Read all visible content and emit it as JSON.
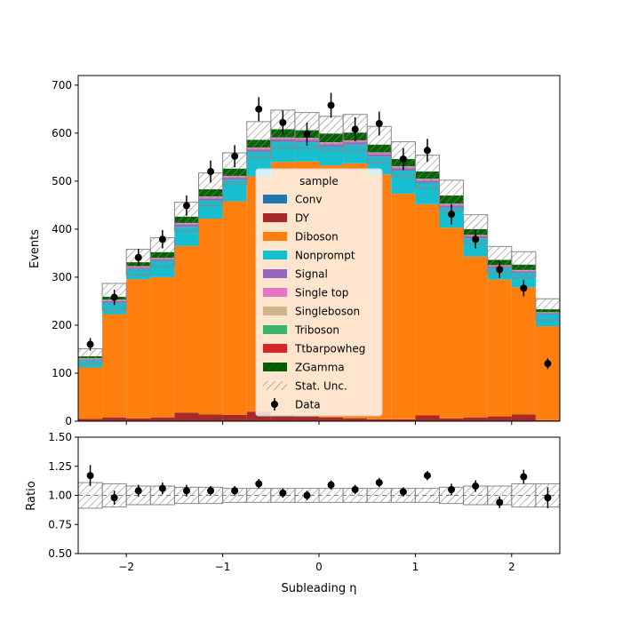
{
  "chart_data": [
    {
      "type": "stacked-histogram",
      "xlabel": "",
      "ylabel": "Events",
      "xlim": [
        -2.5,
        2.5
      ],
      "ylim": [
        0,
        720
      ],
      "x_ticks": [
        "−2",
        "−1",
        "0",
        "1",
        "2"
      ],
      "x_tick_values": [
        -2,
        -1,
        0,
        1,
        2
      ],
      "y_ticks": [
        "0",
        "100",
        "200",
        "300",
        "400",
        "500",
        "600",
        "700"
      ],
      "y_tick_values": [
        0,
        100,
        200,
        300,
        400,
        500,
        600,
        700
      ],
      "bin_edges": [
        -2.5,
        -2.25,
        -2.0,
        -1.75,
        -1.5,
        -1.25,
        -1.0,
        -0.75,
        -0.5,
        -0.25,
        0.0,
        0.25,
        0.5,
        0.75,
        1.0,
        1.25,
        1.5,
        1.75,
        2.0,
        2.25,
        2.5
      ],
      "legend_title": "sample",
      "legend_position": "center",
      "series": [
        {
          "name": "Conv",
          "color": "#1f77b4",
          "values": [
            0,
            0,
            0,
            0,
            0,
            0,
            0,
            0,
            0,
            0,
            0,
            0,
            0,
            0,
            0,
            0,
            0,
            0,
            0,
            0
          ]
        },
        {
          "name": "DY",
          "color": "#a52a2a",
          "values": [
            5,
            8,
            6,
            8,
            18,
            14,
            13,
            20,
            12,
            10,
            8,
            6,
            4,
            4,
            12,
            6,
            8,
            10,
            14,
            2
          ]
        },
        {
          "name": "Diboson",
          "color": "#ff7f0e",
          "values": [
            107,
            215,
            290,
            292,
            347,
            408,
            445,
            490,
            528,
            531,
            525,
            531,
            510,
            470,
            440,
            397,
            335,
            285,
            265,
            196
          ]
        },
        {
          "name": "Nonprompt",
          "color": "#17becf",
          "values": [
            15,
            24,
            21,
            34,
            40,
            38,
            45,
            51,
            42,
            40,
            39,
            39,
            37,
            48,
            45,
            42,
            38,
            24,
            30,
            25
          ]
        },
        {
          "name": "Signal",
          "color": "#9467bd",
          "values": [
            2,
            3,
            3,
            3,
            4,
            4,
            4,
            5,
            5,
            5,
            5,
            5,
            5,
            5,
            4,
            4,
            4,
            3,
            3,
            2
          ]
        },
        {
          "name": "Single top",
          "color": "#e377c2",
          "values": [
            1,
            2,
            2,
            2,
            3,
            3,
            3,
            3,
            3,
            3,
            3,
            3,
            3,
            3,
            3,
            3,
            2,
            2,
            2,
            1
          ]
        },
        {
          "name": "Singleboson",
          "color": "#d2b48c",
          "values": [
            1,
            1,
            1,
            1,
            1,
            1,
            1,
            1,
            1,
            1,
            1,
            1,
            1,
            1,
            1,
            1,
            1,
            1,
            1,
            1
          ]
        },
        {
          "name": "Triboson",
          "color": "#3cb371",
          "values": [
            0,
            0,
            0,
            0,
            0,
            0,
            0,
            0,
            0,
            0,
            0,
            0,
            0,
            0,
            0,
            0,
            0,
            0,
            0,
            0
          ]
        },
        {
          "name": "Ttbarpowheg",
          "color": "#d62728",
          "values": [
            0,
            0,
            0,
            0,
            0,
            0,
            0,
            0,
            0,
            0,
            0,
            0,
            0,
            0,
            0,
            0,
            0,
            0,
            0,
            0
          ]
        },
        {
          "name": "ZGamma",
          "color": "#006400",
          "values": [
            4,
            6,
            8,
            12,
            13,
            15,
            15,
            16,
            17,
            16,
            18,
            16,
            16,
            15,
            15,
            17,
            12,
            11,
            11,
            6
          ]
        }
      ],
      "stat_unc": {
        "name": "Stat. Unc.",
        "values": [
          16,
          28,
          27,
          30,
          30,
          34,
          33,
          38,
          40,
          37,
          36,
          38,
          38,
          36,
          34,
          32,
          30,
          28,
          27,
          22
        ]
      },
      "data": {
        "name": "Data",
        "color": "#000000",
        "values": [
          160,
          258,
          341,
          379,
          449,
          520,
          552,
          650,
          622,
          598,
          658,
          608,
          620,
          546,
          564,
          431,
          379,
          316,
          277,
          120
        ],
        "errors": [
          13,
          16,
          18,
          19,
          21,
          23,
          23,
          25,
          25,
          24,
          26,
          25,
          25,
          23,
          24,
          21,
          19,
          18,
          17,
          11
        ]
      }
    },
    {
      "type": "ratio",
      "ylabel": "Ratio",
      "xlabel": "Subleading η",
      "xlim": [
        -2.5,
        2.5
      ],
      "ylim": [
        0.5,
        1.5
      ],
      "x_ticks": [
        "−2",
        "−1",
        "0",
        "1",
        "2"
      ],
      "x_tick_values": [
        -2,
        -1,
        0,
        1,
        2
      ],
      "y_ticks": [
        "0.50",
        "0.75",
        "1.00",
        "1.25",
        "1.50"
      ],
      "y_tick_values": [
        0.5,
        0.75,
        1.0,
        1.25,
        1.5
      ],
      "reference_line": 1.0,
      "values": [
        1.17,
        0.98,
        1.04,
        1.06,
        1.04,
        1.04,
        1.04,
        1.1,
        1.02,
        1.0,
        1.09,
        1.05,
        1.11,
        1.03,
        1.17,
        1.05,
        1.08,
        0.94,
        1.16,
        0.98
      ],
      "errors": [
        0.09,
        0.06,
        0.05,
        0.05,
        0.05,
        0.04,
        0.04,
        0.04,
        0.04,
        0.04,
        0.04,
        0.04,
        0.04,
        0.04,
        0.04,
        0.05,
        0.05,
        0.05,
        0.06,
        0.09
      ],
      "unc_band": [
        0.11,
        0.1,
        0.08,
        0.08,
        0.07,
        0.07,
        0.06,
        0.06,
        0.06,
        0.06,
        0.06,
        0.06,
        0.06,
        0.06,
        0.06,
        0.07,
        0.08,
        0.08,
        0.1,
        0.1
      ]
    }
  ]
}
